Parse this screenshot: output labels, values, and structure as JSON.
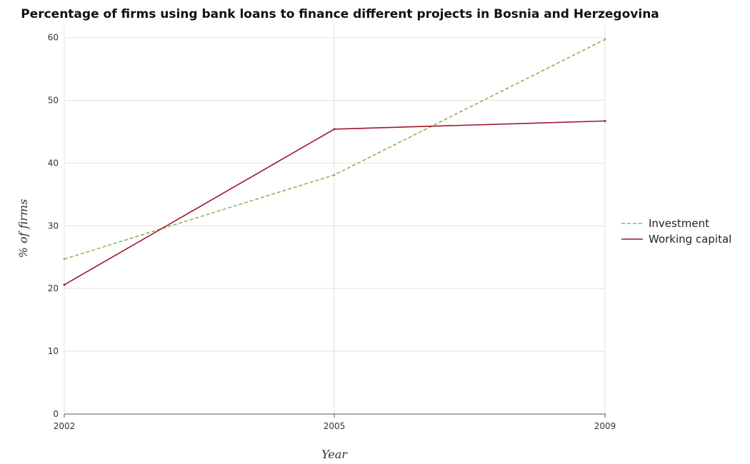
{
  "chart_data": {
    "type": "line",
    "title": "Percentage of firms using bank loans to finance different projects in Bosnia and Herzegovina",
    "xlabel": "Year",
    "ylabel": "% of firms",
    "categories": [
      "2002",
      "2005",
      "2009"
    ],
    "ylim": [
      0,
      62
    ],
    "yticks": [
      0,
      10,
      20,
      30,
      40,
      50,
      60
    ],
    "grid": true,
    "legend_position": "right",
    "series": [
      {
        "name": "Investment",
        "values": [
          24.7,
          38.1,
          59.7
        ],
        "color": "#8db55e",
        "dash": "dashed"
      },
      {
        "name": "Working capital",
        "values": [
          20.6,
          45.4,
          46.7
        ],
        "color": "#a0162c",
        "dash": "solid"
      }
    ]
  }
}
